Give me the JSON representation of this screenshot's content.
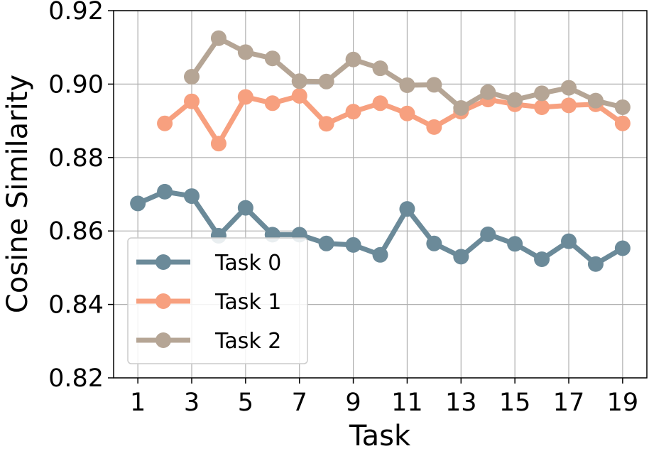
{
  "chart_data": {
    "type": "line",
    "xlabel": "Task",
    "ylabel": "Cosine Similarity",
    "xlim": [
      0.1,
      19.9
    ],
    "ylim": [
      0.82,
      0.92
    ],
    "xticks": [
      1,
      3,
      5,
      7,
      9,
      11,
      13,
      15,
      17,
      19
    ],
    "yticks": [
      0.82,
      0.84,
      0.86,
      0.88,
      0.9,
      0.92
    ],
    "ytick_labels": [
      "0.82",
      "0.84",
      "0.86",
      "0.88",
      "0.90",
      "0.92"
    ],
    "grid": true,
    "legend_position": "lower-left",
    "series": [
      {
        "name": "Task 0",
        "color": "#6b8a99",
        "x": [
          1,
          2,
          3,
          4,
          5,
          6,
          7,
          8,
          9,
          10,
          11,
          12,
          13,
          14,
          15,
          16,
          17,
          18,
          19
        ],
        "y": [
          0.8675,
          0.8707,
          0.8695,
          0.8587,
          0.8663,
          0.859,
          0.859,
          0.8566,
          0.8562,
          0.8535,
          0.866,
          0.8566,
          0.853,
          0.8591,
          0.8565,
          0.8523,
          0.8572,
          0.851,
          0.8553
        ]
      },
      {
        "name": "Task 1",
        "color": "#f7a07f",
        "x": [
          2,
          3,
          4,
          5,
          6,
          7,
          8,
          9,
          10,
          11,
          12,
          13,
          14,
          15,
          16,
          17,
          18,
          19
        ],
        "y": [
          0.8893,
          0.8953,
          0.8838,
          0.8965,
          0.8948,
          0.8968,
          0.8892,
          0.8925,
          0.8948,
          0.892,
          0.8883,
          0.8925,
          0.8958,
          0.8945,
          0.8937,
          0.8942,
          0.8945,
          0.8893
        ]
      },
      {
        "name": "Task 2",
        "color": "#b5a595",
        "x": [
          3,
          4,
          5,
          6,
          7,
          8,
          9,
          10,
          11,
          12,
          13,
          14,
          15,
          16,
          17,
          18,
          19
        ],
        "y": [
          0.902,
          0.9125,
          0.9087,
          0.907,
          0.9008,
          0.9007,
          0.9067,
          0.9043,
          0.8997,
          0.8998,
          0.8935,
          0.8978,
          0.8957,
          0.8975,
          0.899,
          0.8955,
          0.8937
        ]
      }
    ]
  }
}
